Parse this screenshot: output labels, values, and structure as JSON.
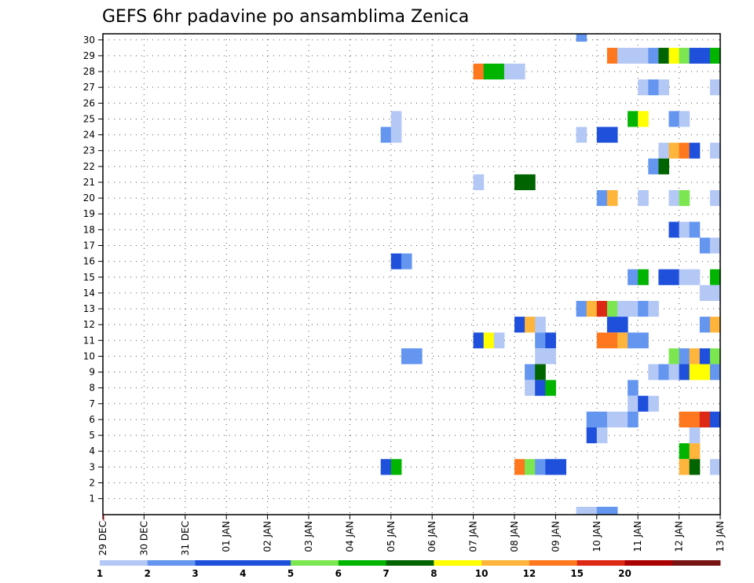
{
  "chart_data": {
    "type": "heatmap",
    "title": "GEFS 6hr padavine po ansamblima Zenica",
    "x_tick_labels": [
      "29 DEC",
      "30 DEC",
      "31 DEC",
      "01 JAN",
      "02 JAN",
      "03 JAN",
      "04 JAN",
      "05 JAN",
      "06 JAN",
      "07 JAN",
      "08 JAN",
      "09 JAN",
      "10 JAN",
      "11 JAN",
      "12 JAN",
      "13 JAN"
    ],
    "y_tick_labels": [
      "1",
      "2",
      "3",
      "4",
      "5",
      "6",
      "7",
      "8",
      "9",
      "10",
      "11",
      "12",
      "13",
      "14",
      "15",
      "16",
      "17",
      "18",
      "19",
      "20",
      "21",
      "22",
      "23",
      "24",
      "25",
      "26",
      "27",
      "28",
      "29",
      "30"
    ],
    "y_range": [
      0,
      30
    ],
    "x_range_days": [
      0,
      15
    ],
    "grid": true,
    "legend": {
      "placement": "bottom",
      "labels": [
        "1",
        "2",
        "3",
        "4",
        "5",
        "6",
        "7",
        "8",
        "10",
        "12",
        "15",
        "20"
      ],
      "colors": [
        "#b4c8f5",
        "#6496f0",
        "#1e50dc",
        "#1e50dc",
        "#7ce650",
        "#00b400",
        "#006400",
        "#ffff00",
        "#ffb43c",
        "#ff781e",
        "#dc2814",
        "#aa0000",
        "#781414"
      ]
    },
    "cells": [
      {
        "x": 11.5,
        "y": 30,
        "v": 2
      },
      {
        "x": 12.25,
        "y": 29,
        "v": 14
      },
      {
        "x": 12.5,
        "y": 29,
        "v": 1
      },
      {
        "x": 12.75,
        "y": 29,
        "v": 1
      },
      {
        "x": 13.0,
        "y": 29,
        "v": 1
      },
      {
        "x": 13.25,
        "y": 29,
        "v": 2
      },
      {
        "x": 13.5,
        "y": 29,
        "v": 7
      },
      {
        "x": 13.75,
        "y": 29,
        "v": 8
      },
      {
        "x": 14.0,
        "y": 29,
        "v": 5
      },
      {
        "x": 14.25,
        "y": 29,
        "v": 3
      },
      {
        "x": 14.5,
        "y": 29,
        "v": 3
      },
      {
        "x": 14.75,
        "y": 29,
        "v": 6
      },
      {
        "x": 9.0,
        "y": 28,
        "v": 12
      },
      {
        "x": 9.25,
        "y": 28,
        "v": 6
      },
      {
        "x": 9.5,
        "y": 28,
        "v": 6
      },
      {
        "x": 9.75,
        "y": 28,
        "v": 1
      },
      {
        "x": 10.0,
        "y": 28,
        "v": 1
      },
      {
        "x": 13.0,
        "y": 27,
        "v": 1
      },
      {
        "x": 13.25,
        "y": 27,
        "v": 2
      },
      {
        "x": 13.5,
        "y": 27,
        "v": 1
      },
      {
        "x": 14.75,
        "y": 27,
        "v": 1
      },
      {
        "x": 7.0,
        "y": 25,
        "v": 1
      },
      {
        "x": 12.75,
        "y": 25,
        "v": 6
      },
      {
        "x": 13.0,
        "y": 25,
        "v": 8
      },
      {
        "x": 13.75,
        "y": 25,
        "v": 2
      },
      {
        "x": 14.0,
        "y": 25,
        "v": 1
      },
      {
        "x": 6.75,
        "y": 24,
        "v": 2
      },
      {
        "x": 7.0,
        "y": 24,
        "v": 1
      },
      {
        "x": 11.5,
        "y": 24,
        "v": 1
      },
      {
        "x": 12.0,
        "y": 24,
        "v": 3
      },
      {
        "x": 12.25,
        "y": 24,
        "v": 3
      },
      {
        "x": 13.5,
        "y": 23,
        "v": 1
      },
      {
        "x": 13.75,
        "y": 23,
        "v": 10
      },
      {
        "x": 14.0,
        "y": 23,
        "v": 14
      },
      {
        "x": 14.25,
        "y": 23,
        "v": 3
      },
      {
        "x": 14.75,
        "y": 23,
        "v": 1
      },
      {
        "x": 13.25,
        "y": 22,
        "v": 2
      },
      {
        "x": 13.5,
        "y": 22,
        "v": 7
      },
      {
        "x": 9.0,
        "y": 21,
        "v": 1
      },
      {
        "x": 10.0,
        "y": 21,
        "v": 7
      },
      {
        "x": 10.25,
        "y": 21,
        "v": 7
      },
      {
        "x": 12.0,
        "y": 20,
        "v": 2
      },
      {
        "x": 12.25,
        "y": 20,
        "v": 10
      },
      {
        "x": 13.0,
        "y": 20,
        "v": 1
      },
      {
        "x": 13.75,
        "y": 20,
        "v": 1
      },
      {
        "x": 14.0,
        "y": 20,
        "v": 5
      },
      {
        "x": 14.75,
        "y": 20,
        "v": 1
      },
      {
        "x": 13.75,
        "y": 18,
        "v": 3
      },
      {
        "x": 14.0,
        "y": 18,
        "v": 1
      },
      {
        "x": 14.25,
        "y": 18,
        "v": 2
      },
      {
        "x": 14.5,
        "y": 17,
        "v": 2
      },
      {
        "x": 14.75,
        "y": 17,
        "v": 1
      },
      {
        "x": 7.0,
        "y": 16,
        "v": 3
      },
      {
        "x": 7.25,
        "y": 16,
        "v": 2
      },
      {
        "x": 12.75,
        "y": 15,
        "v": 2
      },
      {
        "x": 13.0,
        "y": 15,
        "v": 6
      },
      {
        "x": 13.5,
        "y": 15,
        "v": 3
      },
      {
        "x": 13.75,
        "y": 15,
        "v": 3
      },
      {
        "x": 14.0,
        "y": 15,
        "v": 1
      },
      {
        "x": 14.25,
        "y": 15,
        "v": 1
      },
      {
        "x": 14.75,
        "y": 15,
        "v": 6
      },
      {
        "x": 14.5,
        "y": 14,
        "v": 1
      },
      {
        "x": 14.75,
        "y": 14,
        "v": 1
      },
      {
        "x": 11.5,
        "y": 13,
        "v": 2
      },
      {
        "x": 11.75,
        "y": 13,
        "v": 10
      },
      {
        "x": 12.0,
        "y": 13,
        "v": 15
      },
      {
        "x": 12.25,
        "y": 13,
        "v": 5
      },
      {
        "x": 12.5,
        "y": 13,
        "v": 1
      },
      {
        "x": 12.75,
        "y": 13,
        "v": 1
      },
      {
        "x": 13.0,
        "y": 13,
        "v": 2
      },
      {
        "x": 13.25,
        "y": 13,
        "v": 1
      },
      {
        "x": 10.0,
        "y": 12,
        "v": 3
      },
      {
        "x": 10.25,
        "y": 12,
        "v": 10
      },
      {
        "x": 10.5,
        "y": 12,
        "v": 1
      },
      {
        "x": 12.25,
        "y": 12,
        "v": 3
      },
      {
        "x": 12.5,
        "y": 12,
        "v": 3
      },
      {
        "x": 14.5,
        "y": 12,
        "v": 2
      },
      {
        "x": 14.75,
        "y": 12,
        "v": 10
      },
      {
        "x": 9.0,
        "y": 11,
        "v": 3
      },
      {
        "x": 9.25,
        "y": 11,
        "v": 8
      },
      {
        "x": 9.5,
        "y": 11,
        "v": 1
      },
      {
        "x": 10.5,
        "y": 11,
        "v": 2
      },
      {
        "x": 10.75,
        "y": 11,
        "v": 3
      },
      {
        "x": 12.0,
        "y": 11,
        "v": 12
      },
      {
        "x": 12.25,
        "y": 11,
        "v": 12
      },
      {
        "x": 12.5,
        "y": 11,
        "v": 10
      },
      {
        "x": 12.75,
        "y": 11,
        "v": 2
      },
      {
        "x": 13.0,
        "y": 11,
        "v": 2
      },
      {
        "x": 7.25,
        "y": 10,
        "v": 2
      },
      {
        "x": 7.5,
        "y": 10,
        "v": 2
      },
      {
        "x": 10.5,
        "y": 10,
        "v": 1
      },
      {
        "x": 10.75,
        "y": 10,
        "v": 1
      },
      {
        "x": 13.75,
        "y": 10,
        "v": 5
      },
      {
        "x": 14.0,
        "y": 10,
        "v": 2
      },
      {
        "x": 14.25,
        "y": 10,
        "v": 10
      },
      {
        "x": 14.5,
        "y": 10,
        "v": 3
      },
      {
        "x": 14.75,
        "y": 10,
        "v": 5
      },
      {
        "x": 10.25,
        "y": 9,
        "v": 2
      },
      {
        "x": 10.5,
        "y": 9,
        "v": 7
      },
      {
        "x": 13.25,
        "y": 9,
        "v": 1
      },
      {
        "x": 13.5,
        "y": 9,
        "v": 2
      },
      {
        "x": 13.75,
        "y": 9,
        "v": 1
      },
      {
        "x": 14.0,
        "y": 9,
        "v": 3
      },
      {
        "x": 14.25,
        "y": 9,
        "v": 8
      },
      {
        "x": 14.5,
        "y": 9,
        "v": 8
      },
      {
        "x": 14.75,
        "y": 9,
        "v": 2
      },
      {
        "x": 10.25,
        "y": 8,
        "v": 1
      },
      {
        "x": 10.5,
        "y": 8,
        "v": 3
      },
      {
        "x": 10.75,
        "y": 8,
        "v": 6
      },
      {
        "x": 12.75,
        "y": 8,
        "v": 2
      },
      {
        "x": 12.75,
        "y": 7,
        "v": 1
      },
      {
        "x": 13.0,
        "y": 7,
        "v": 3
      },
      {
        "x": 13.25,
        "y": 7,
        "v": 1
      },
      {
        "x": 11.75,
        "y": 6,
        "v": 2
      },
      {
        "x": 12.0,
        "y": 6,
        "v": 2
      },
      {
        "x": 12.25,
        "y": 6,
        "v": 1
      },
      {
        "x": 12.5,
        "y": 6,
        "v": 1
      },
      {
        "x": 12.75,
        "y": 6,
        "v": 2
      },
      {
        "x": 14.0,
        "y": 6,
        "v": 14
      },
      {
        "x": 14.25,
        "y": 6,
        "v": 14
      },
      {
        "x": 14.5,
        "y": 6,
        "v": 15
      },
      {
        "x": 14.75,
        "y": 6,
        "v": 3
      },
      {
        "x": 11.75,
        "y": 5,
        "v": 3
      },
      {
        "x": 12.0,
        "y": 5,
        "v": 1
      },
      {
        "x": 14.25,
        "y": 5,
        "v": 1
      },
      {
        "x": 14.0,
        "y": 4,
        "v": 6
      },
      {
        "x": 14.25,
        "y": 4,
        "v": 10
      },
      {
        "x": 6.75,
        "y": 3,
        "v": 3
      },
      {
        "x": 7.0,
        "y": 3,
        "v": 6
      },
      {
        "x": 10.0,
        "y": 3,
        "v": 12
      },
      {
        "x": 10.25,
        "y": 3,
        "v": 5
      },
      {
        "x": 10.5,
        "y": 3,
        "v": 2
      },
      {
        "x": 10.75,
        "y": 3,
        "v": 3
      },
      {
        "x": 11.0,
        "y": 3,
        "v": 3
      },
      {
        "x": 14.0,
        "y": 3,
        "v": 10
      },
      {
        "x": 14.25,
        "y": 3,
        "v": 7
      },
      {
        "x": 14.75,
        "y": 3,
        "v": 1
      },
      {
        "x": 11.5,
        "y": 0,
        "v": 1
      },
      {
        "x": 11.75,
        "y": 0,
        "v": 1
      },
      {
        "x": 12.0,
        "y": 0,
        "v": 2
      },
      {
        "x": 12.25,
        "y": 0,
        "v": 2
      }
    ]
  }
}
